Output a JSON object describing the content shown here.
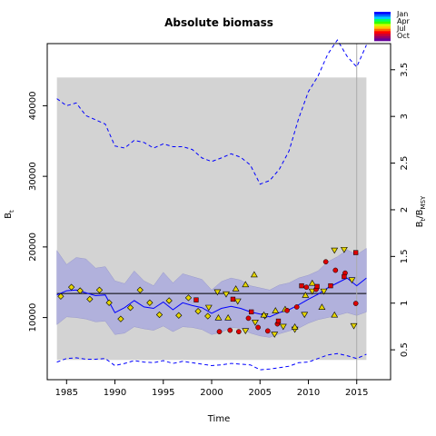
{
  "chart_data": {
    "type": "scatter",
    "title": "Absolute biomass",
    "xlabel": "Time",
    "ylabel": "B",
    "ylabel_sub": "t",
    "y2label": "B",
    "y2label_sub": "t",
    "y2label_tail": "/B",
    "y2label_tail_sub": "MSY",
    "xlim": [
      1983,
      2018.5
    ],
    "ylim": [
      1200,
      48800
    ],
    "y2lim": [
      0.18,
      3.78
    ],
    "xticks": [
      1985,
      1990,
      1995,
      2000,
      2005,
      2010,
      2015
    ],
    "yticks": [
      10000,
      20000,
      30000,
      40000
    ],
    "y2ticks": [
      0.5,
      1,
      1.5,
      2,
      2.5,
      3,
      3.5
    ],
    "y2_scale": 13100,
    "grid": false,
    "shaded_region": {
      "x": [
        1984,
        2016
      ],
      "y": [
        4000,
        44000
      ],
      "color": "#d3d3d3"
    },
    "vline_x": 2015,
    "hline_y": 13400,
    "band_x": [
      1984,
      1985,
      1986,
      1987,
      1988,
      1989,
      1990,
      1991,
      1992,
      1993,
      1994,
      1995,
      1996,
      1997,
      1998,
      1999,
      2000,
      2001,
      2002,
      2003,
      2004,
      2005,
      2006,
      2007,
      2008,
      2009,
      2010,
      2011,
      2012,
      2013,
      2014,
      2015,
      2016
    ],
    "band_upper": [
      19500,
      17500,
      18500,
      18300,
      17000,
      17200,
      15200,
      14800,
      16600,
      15200,
      14500,
      16400,
      14900,
      16200,
      15800,
      15400,
      13900,
      15100,
      15600,
      15300,
      14500,
      14200,
      13900,
      14600,
      14900,
      15600,
      16000,
      16600,
      17900,
      18600,
      19600,
      18900,
      19800
    ],
    "band_lower": [
      9000,
      10100,
      10000,
      9800,
      9400,
      9500,
      7600,
      7800,
      8700,
      8400,
      8200,
      8800,
      8000,
      8700,
      8600,
      8300,
      7600,
      7900,
      8600,
      8500,
      7800,
      7400,
      7200,
      7700,
      8100,
      8500,
      9200,
      9700,
      10000,
      10300,
      10700,
      10300,
      10800
    ],
    "biomass_line": [
      13200,
      13800,
      13900,
      13500,
      13100,
      13200,
      10700,
      11400,
      12400,
      11500,
      11300,
      12200,
      11100,
      12100,
      11700,
      11400,
      10600,
      11300,
      11600,
      11300,
      10800,
      10500,
      10100,
      10700,
      11100,
      11800,
      12600,
      13300,
      14200,
      14900,
      15600,
      14500,
      15600
    ],
    "ci_upper_x": [
      1984,
      1985,
      1986,
      1987,
      1988,
      1989,
      1990,
      1991,
      1992,
      1993,
      1994,
      1995,
      1996,
      1997,
      1998,
      1999,
      2000,
      2001,
      2002,
      2003,
      2004,
      2005,
      2006,
      2007,
      2008,
      2009,
      2010,
      2011,
      2012,
      2013,
      2014,
      2015,
      2016
    ],
    "ci_upper": [
      41000,
      40000,
      40400,
      38600,
      38000,
      37400,
      34300,
      34000,
      35100,
      34800,
      34000,
      34600,
      34200,
      34200,
      33800,
      32600,
      32100,
      32600,
      33200,
      32700,
      31600,
      28900,
      29400,
      31000,
      33600,
      38200,
      42000,
      44200,
      47300,
      49300,
      47000,
      45500,
      48600
    ],
    "ci_lower": [
      3700,
      4200,
      4300,
      4100,
      4100,
      4200,
      3200,
      3500,
      3900,
      3700,
      3600,
      3900,
      3500,
      3800,
      3600,
      3400,
      3200,
      3300,
      3500,
      3400,
      3300,
      2600,
      2700,
      2900,
      3100,
      3600,
      3700,
      4200,
      4700,
      4900,
      4600,
      4200,
      4800
    ],
    "points_diamond": [
      {
        "x": 1984.4,
        "y": 13000
      },
      {
        "x": 1985.5,
        "y": 14300
      },
      {
        "x": 1986.4,
        "y": 13800
      },
      {
        "x": 1987.4,
        "y": 12600
      },
      {
        "x": 1988.4,
        "y": 13900
      },
      {
        "x": 1989.4,
        "y": 12100
      },
      {
        "x": 1990.6,
        "y": 9800
      },
      {
        "x": 1991.6,
        "y": 11400
      },
      {
        "x": 1992.6,
        "y": 13900
      },
      {
        "x": 1993.6,
        "y": 12100
      },
      {
        "x": 1994.6,
        "y": 10400
      },
      {
        "x": 1995.6,
        "y": 12400
      },
      {
        "x": 1996.6,
        "y": 10300
      },
      {
        "x": 1997.6,
        "y": 12800
      },
      {
        "x": 1998.6,
        "y": 10900
      },
      {
        "x": 1999.6,
        "y": 10200
      }
    ],
    "points_triangle_down": [
      {
        "x": 1999.7,
        "y": 11400
      },
      {
        "x": 2000.6,
        "y": 13600
      },
      {
        "x": 2001.5,
        "y": 13300
      },
      {
        "x": 2002.7,
        "y": 12300
      },
      {
        "x": 2003.5,
        "y": 8100
      },
      {
        "x": 2004.5,
        "y": 9300
      },
      {
        "x": 2005.5,
        "y": 10200
      },
      {
        "x": 2006.5,
        "y": 7600
      },
      {
        "x": 2007.4,
        "y": 8700
      },
      {
        "x": 2008.6,
        "y": 8300
      },
      {
        "x": 2009.6,
        "y": 10400
      },
      {
        "x": 2010.4,
        "y": 13700
      },
      {
        "x": 2011.6,
        "y": 13700
      },
      {
        "x": 2012.7,
        "y": 19500
      },
      {
        "x": 2013.7,
        "y": 19600
      },
      {
        "x": 2014.5,
        "y": 15300
      },
      {
        "x": 2014.7,
        "y": 8800
      }
    ],
    "points_triangle_up": [
      {
        "x": 2000.7,
        "y": 10000
      },
      {
        "x": 2001.7,
        "y": 10000
      },
      {
        "x": 2002.5,
        "y": 14100
      },
      {
        "x": 2003.5,
        "y": 14700
      },
      {
        "x": 2004.4,
        "y": 16100
      },
      {
        "x": 2005.4,
        "y": 10400
      },
      {
        "x": 2006.6,
        "y": 11000
      },
      {
        "x": 2007.6,
        "y": 11200
      },
      {
        "x": 2008.6,
        "y": 8700
      },
      {
        "x": 2009.7,
        "y": 13200
      },
      {
        "x": 2010.4,
        "y": 14900
      },
      {
        "x": 2011.4,
        "y": 11500
      },
      {
        "x": 2012.7,
        "y": 10400
      }
    ],
    "points_circle": [
      {
        "x": 2000.8,
        "y": 8000
      },
      {
        "x": 2001.9,
        "y": 8200
      },
      {
        "x": 2002.8,
        "y": 8000
      },
      {
        "x": 2003.8,
        "y": 9900
      },
      {
        "x": 2004.8,
        "y": 8600
      },
      {
        "x": 2005.8,
        "y": 8100
      },
      {
        "x": 2006.8,
        "y": 9100
      },
      {
        "x": 2007.8,
        "y": 11000
      },
      {
        "x": 2008.8,
        "y": 11500
      },
      {
        "x": 2009.8,
        "y": 14300
      },
      {
        "x": 2010.8,
        "y": 14000
      },
      {
        "x": 2011.8,
        "y": 17900
      },
      {
        "x": 2012.8,
        "y": 16700
      },
      {
        "x": 2013.8,
        "y": 16300
      },
      {
        "x": 2014.9,
        "y": 12000
      }
    ],
    "points_square": [
      {
        "x": 1998.4,
        "y": 12500
      },
      {
        "x": 2002.2,
        "y": 12600
      },
      {
        "x": 2004.1,
        "y": 10800
      },
      {
        "x": 2006.9,
        "y": 9500
      },
      {
        "x": 2009.3,
        "y": 14500
      },
      {
        "x": 2010.9,
        "y": 14400
      },
      {
        "x": 2012.3,
        "y": 14500
      },
      {
        "x": 2013.7,
        "y": 15800
      },
      {
        "x": 2014.9,
        "y": 19200
      }
    ],
    "legend": {
      "labels": [
        "Jan",
        "Apr",
        "Jul",
        "Oct"
      ],
      "colors": [
        "#0000ff",
        "#0066ff",
        "#00ccff",
        "#00ff66",
        "#33ff00",
        "#ccff00",
        "#ffcc00",
        "#ff6600",
        "#ff0000",
        "#cc0033",
        "#990066",
        "#660099"
      ]
    },
    "colors": {
      "band": "#aaaadd",
      "line": "#0000ff",
      "ci": "#0000ff",
      "shade": "#d3d3d3",
      "marker_yellow": "#e6d600",
      "marker_red": "#dd0000",
      "hline": "#000000",
      "vline": "#aaaaaa"
    }
  }
}
